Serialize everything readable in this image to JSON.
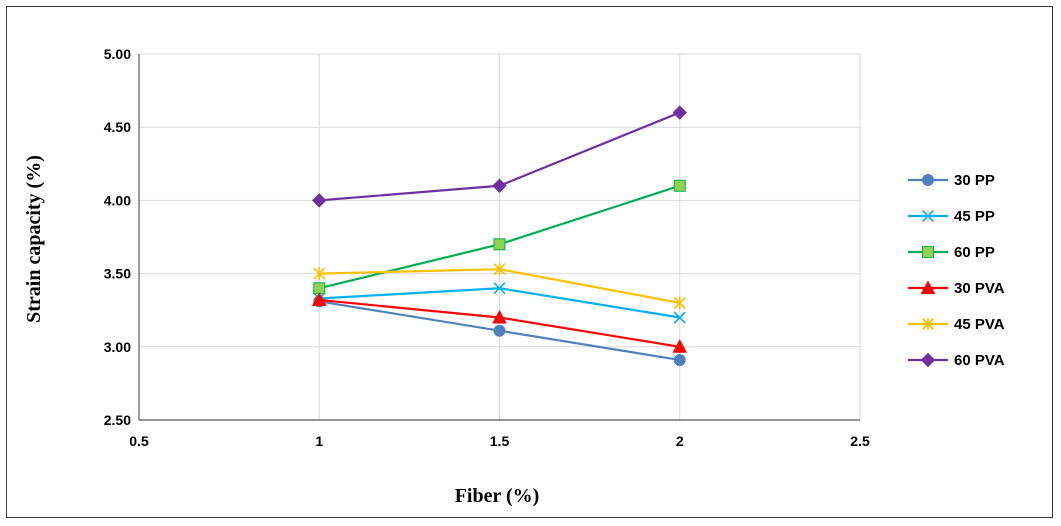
{
  "chart_data": {
    "type": "line",
    "xlabel": "Fiber (%)",
    "ylabel": "Strain capacity (%)",
    "xlim": [
      0.5,
      2.5
    ],
    "ylim": [
      2.5,
      5.0
    ],
    "xticks": [
      "0.5",
      "1",
      "1.5",
      "2",
      "2.5"
    ],
    "yticks": [
      "2.50",
      "3.00",
      "3.50",
      "4.00",
      "4.50",
      "5.00"
    ],
    "grid": "vertical and horizontal, light gray",
    "legend_position": "right",
    "x": [
      1,
      1.5,
      2
    ],
    "series": [
      {
        "name": "30 PP",
        "values": [
          3.31,
          3.11,
          2.91
        ],
        "color": "#4F81BD",
        "marker": "circle"
      },
      {
        "name": "45 PP",
        "values": [
          3.33,
          3.4,
          3.2
        ],
        "color": "#00B0F0",
        "marker": "x"
      },
      {
        "name": "60 PP",
        "values": [
          3.4,
          3.7,
          4.1
        ],
        "color": "#00B050",
        "marker": "square",
        "marker_fill": "#92D050"
      },
      {
        "name": "30 PVA",
        "values": [
          3.32,
          3.2,
          3.0
        ],
        "color": "#FF0000",
        "marker": "triangle"
      },
      {
        "name": "45 PVA",
        "values": [
          3.5,
          3.53,
          3.3
        ],
        "color": "#FFC000",
        "marker": "star"
      },
      {
        "name": "60 PVA",
        "values": [
          4.0,
          4.1,
          4.6
        ],
        "color": "#7030A0",
        "marker": "diamond"
      }
    ]
  }
}
